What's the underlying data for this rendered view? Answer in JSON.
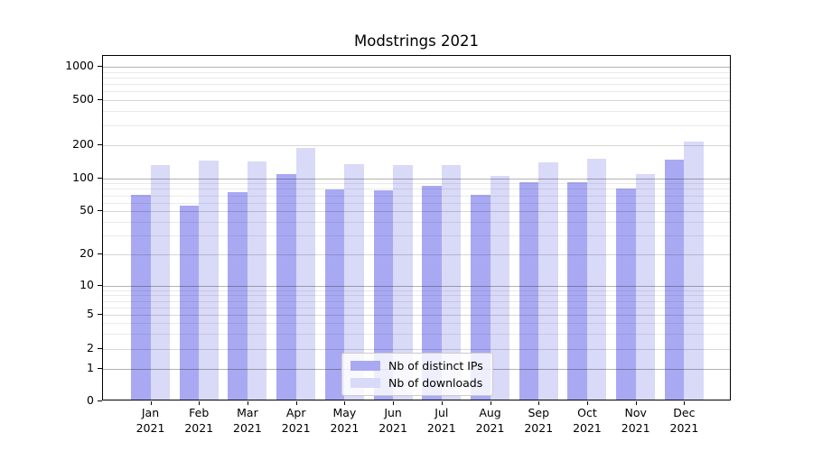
{
  "figure": {
    "title": "Modstrings 2021"
  },
  "chart_data": {
    "type": "bar",
    "title": "Modstrings 2021",
    "categories": [
      "Jan 2021",
      "Feb 2021",
      "Mar 2021",
      "Apr 2021",
      "May 2021",
      "Jun 2021",
      "Jul 2021",
      "Aug 2021",
      "Sep 2021",
      "Oct 2021",
      "Nov 2021",
      "Dec 2021"
    ],
    "series": [
      {
        "name": "Nb of distinct IPs",
        "color": "#a9a9f3",
        "values": [
          71,
          56,
          75,
          110,
          79,
          78,
          86,
          71,
          92,
          93,
          80,
          149
        ]
      },
      {
        "name": "Nb of downloads",
        "color": "#d9d9f8",
        "values": [
          131,
          146,
          143,
          188,
          135,
          133,
          133,
          106,
          141,
          151,
          110,
          215
        ]
      }
    ],
    "xlabel": "",
    "ylabel": "",
    "yscale": "symlog",
    "ylim": [
      0,
      1250
    ],
    "yticks": [
      0,
      1,
      2,
      5,
      10,
      20,
      50,
      100,
      200,
      500,
      1000
    ],
    "grid": "horizontal major and minor gridlines, drawn above bars",
    "legend_position": "lower center"
  }
}
